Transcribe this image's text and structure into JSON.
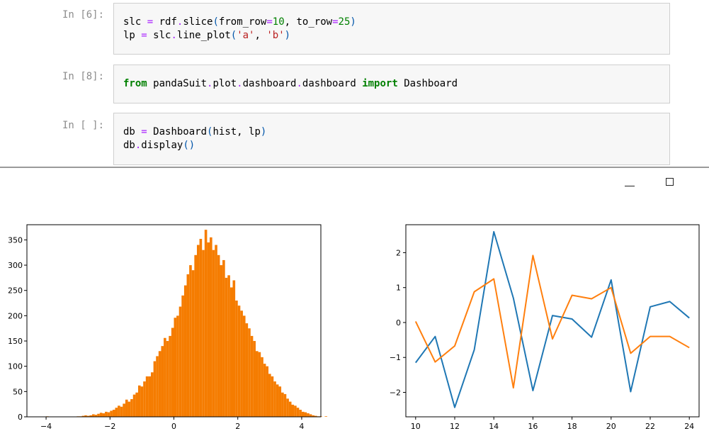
{
  "notebook": {
    "cells": [
      {
        "prompt": "In [6]:",
        "lines": [
          [
            [
              "n",
              "slc "
            ],
            [
              "o",
              "="
            ],
            [
              "n",
              " rdf"
            ],
            [
              "o",
              "."
            ],
            [
              "n",
              "slice"
            ],
            [
              "p",
              "("
            ],
            [
              "n",
              "from_row"
            ],
            [
              "o",
              "="
            ],
            [
              "m",
              "10"
            ],
            [
              "n",
              ", to_row"
            ],
            [
              "o",
              "="
            ],
            [
              "m",
              "25"
            ],
            [
              "p",
              ")"
            ]
          ],
          [
            [
              "n",
              "lp "
            ],
            [
              "o",
              "="
            ],
            [
              "n",
              " slc"
            ],
            [
              "o",
              "."
            ],
            [
              "n",
              "line_plot"
            ],
            [
              "p",
              "("
            ],
            [
              "s",
              "'a'"
            ],
            [
              "n",
              ", "
            ],
            [
              "s",
              "'b'"
            ],
            [
              "p",
              ")"
            ]
          ]
        ]
      },
      {
        "prompt": "In [8]:",
        "lines": [
          [
            [
              "k",
              "from"
            ],
            [
              "n",
              " pandaSuit"
            ],
            [
              "o",
              "."
            ],
            [
              "n",
              "plot"
            ],
            [
              "o",
              "."
            ],
            [
              "n",
              "dashboard"
            ],
            [
              "o",
              "."
            ],
            [
              "n",
              "dashboard "
            ],
            [
              "k",
              "import"
            ],
            [
              "n",
              " Dashboard"
            ]
          ]
        ]
      },
      {
        "prompt": "In [ ]:",
        "lines": [
          [
            [
              "n",
              "db "
            ],
            [
              "o",
              "="
            ],
            [
              "n",
              " Dashboard"
            ],
            [
              "p",
              "("
            ],
            [
              "n",
              "hist, lp"
            ],
            [
              "p",
              ")"
            ]
          ],
          [
            [
              "n",
              "db"
            ],
            [
              "o",
              "."
            ],
            [
              "n",
              "display"
            ],
            [
              "p",
              "()"
            ]
          ]
        ]
      }
    ]
  },
  "window": {
    "minimize_icon": "minimize-icon",
    "maximize_icon": "maximize-icon"
  },
  "histogram": {
    "chart_data": {
      "type": "bar",
      "color": "#f57c00",
      "xlim": [
        -4.6,
        4.6
      ],
      "ylim": [
        0,
        380
      ],
      "xticks": [
        -4,
        -2,
        0,
        2,
        4
      ],
      "xtick_labels": [
        "−4",
        "−2",
        "0",
        "2",
        "4"
      ],
      "yticks": [
        0,
        50,
        100,
        150,
        200,
        250,
        300,
        350
      ],
      "ytick_labels": [
        "0",
        "50",
        "100",
        "150",
        "200",
        "250",
        "300",
        "350"
      ],
      "bin_start": -4.0,
      "bin_width": 0.08,
      "values": [
        1,
        0,
        0,
        0,
        0,
        0,
        0,
        0,
        0,
        0,
        0,
        0,
        1,
        1,
        2,
        3,
        2,
        3,
        5,
        4,
        6,
        8,
        7,
        10,
        9,
        12,
        14,
        18,
        22,
        20,
        26,
        34,
        30,
        35,
        44,
        48,
        62,
        60,
        70,
        80,
        80,
        88,
        110,
        120,
        130,
        140,
        156,
        150,
        160,
        176,
        196,
        200,
        218,
        240,
        260,
        282,
        300,
        290,
        320,
        340,
        352,
        330,
        370,
        345,
        355,
        330,
        340,
        320,
        300,
        310,
        275,
        280,
        256,
        270,
        230,
        220,
        210,
        200,
        185,
        175,
        160,
        150,
        130,
        128,
        118,
        105,
        100,
        85,
        80,
        70,
        64,
        60,
        48,
        45,
        36,
        30,
        24,
        22,
        18,
        14,
        10,
        9,
        7,
        5,
        3,
        2,
        1,
        1,
        0,
        1,
        0,
        0,
        0,
        1,
        0
      ]
    }
  },
  "lineplot": {
    "chart_data": {
      "type": "line",
      "x": [
        10,
        11,
        12,
        13,
        14,
        15,
        16,
        17,
        18,
        19,
        20,
        21,
        22,
        23,
        24
      ],
      "xlim": [
        9.5,
        24.5
      ],
      "ylim": [
        -2.7,
        2.8
      ],
      "xticks": [
        10,
        12,
        14,
        16,
        18,
        20,
        22,
        24
      ],
      "xtick_labels": [
        "10",
        "12",
        "14",
        "16",
        "18",
        "20",
        "22",
        "24"
      ],
      "yticks": [
        -2,
        -1,
        0,
        1,
        2
      ],
      "ytick_labels": [
        "−2",
        "−1",
        "0",
        "1",
        "2"
      ],
      "series": [
        {
          "color": "#1f77b4",
          "values": [
            -1.15,
            -0.4,
            -2.43,
            -0.78,
            2.6,
            0.7,
            -1.95,
            0.2,
            0.1,
            -0.42,
            1.22,
            -1.98,
            0.45,
            0.6,
            0.13
          ]
        },
        {
          "color": "#ff7f0e",
          "values": [
            0.03,
            -1.13,
            -0.67,
            0.88,
            1.25,
            -1.87,
            1.92,
            -0.47,
            0.78,
            0.68,
            1.0,
            -0.88,
            -0.4,
            -0.4,
            -0.72
          ]
        }
      ]
    }
  }
}
